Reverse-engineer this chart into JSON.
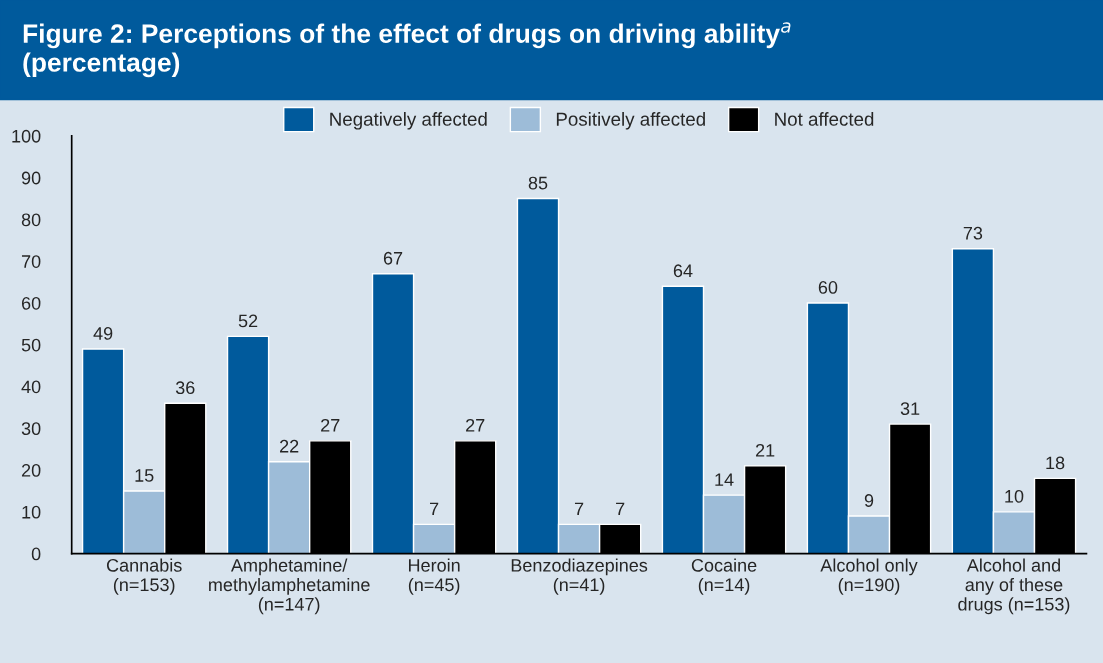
{
  "chart_data": {
    "type": "bar",
    "title": "Figure 2: Perceptions of the effect of drugs on driving ability$^{a}$\n(percentage)",
    "categories": [
      "Cannabis\n(n=153)",
      "Amphetamine/\nmethylamphetamine\n(n=147)",
      "Heroin\n(n=45)",
      "Benzodiazepines\n(n=41)",
      "Cocaine\n(n=14)",
      "Alcohol only\n(n=190)",
      "Alcohol and\nany of these\ndrugs (n=153)"
    ],
    "series": [
      {
        "name": "Negatively affected",
        "color": "#005a9c",
        "values": [
          49,
          52,
          67,
          85,
          64,
          60,
          73
        ]
      },
      {
        "name": "Positively affected",
        "color": "#9dbcd8",
        "values": [
          15,
          22,
          7,
          7,
          14,
          9,
          10
        ]
      },
      {
        "name": "Not affected",
        "color": "#000000",
        "values": [
          36,
          27,
          27,
          7,
          21,
          31,
          18
        ]
      }
    ],
    "ylim": [
      0,
      100
    ],
    "yticks": [
      0,
      10,
      20,
      30,
      40,
      50,
      60,
      70,
      80,
      90,
      100
    ],
    "data_labels": true,
    "grid": false,
    "legend": "top"
  }
}
